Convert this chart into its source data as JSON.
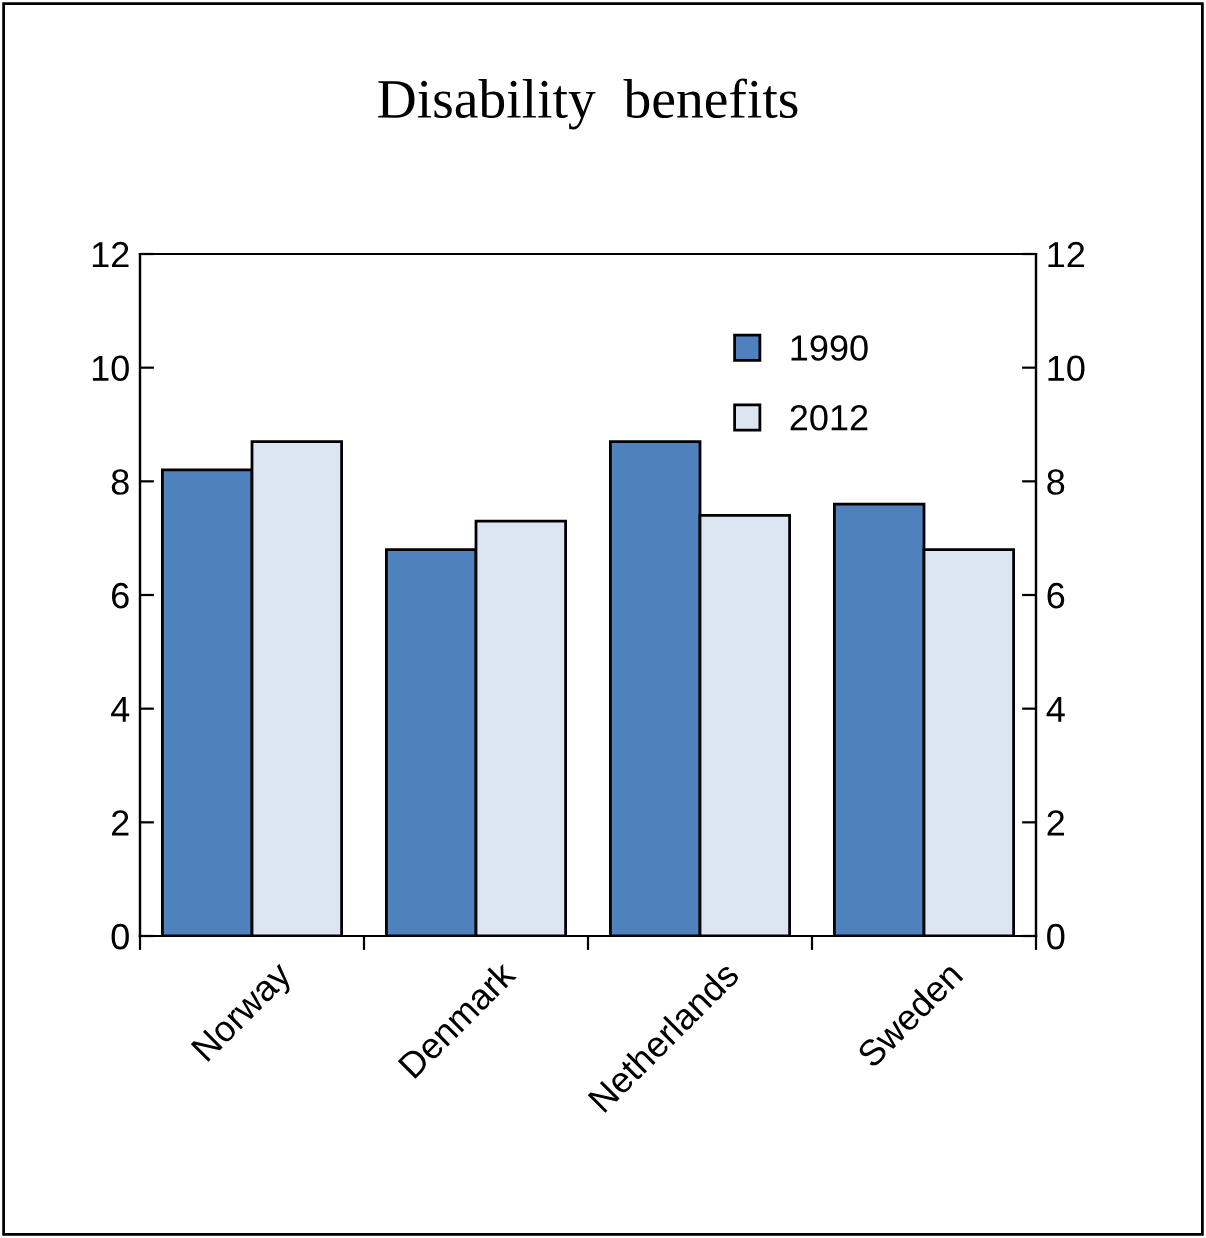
{
  "chart_data": {
    "type": "bar",
    "title": "Disability  benefits",
    "categories": [
      "Norway",
      "Denmark",
      "Netherlands",
      "Sweden"
    ],
    "series": [
      {
        "name": "1990",
        "color": "#4f81bd",
        "values": [
          8.2,
          6.8,
          8.7,
          7.6
        ]
      },
      {
        "name": "2012",
        "color": "#dce6f2",
        "values": [
          8.7,
          7.3,
          7.4,
          6.8
        ]
      }
    ],
    "ylim": [
      0,
      12
    ],
    "yticks": [
      0,
      2,
      4,
      6,
      8,
      10,
      12
    ],
    "y2lim": [
      0,
      12
    ],
    "y2ticks": [
      0,
      2,
      4,
      6,
      8,
      10,
      12
    ],
    "grid": false,
    "legend": "top right"
  }
}
